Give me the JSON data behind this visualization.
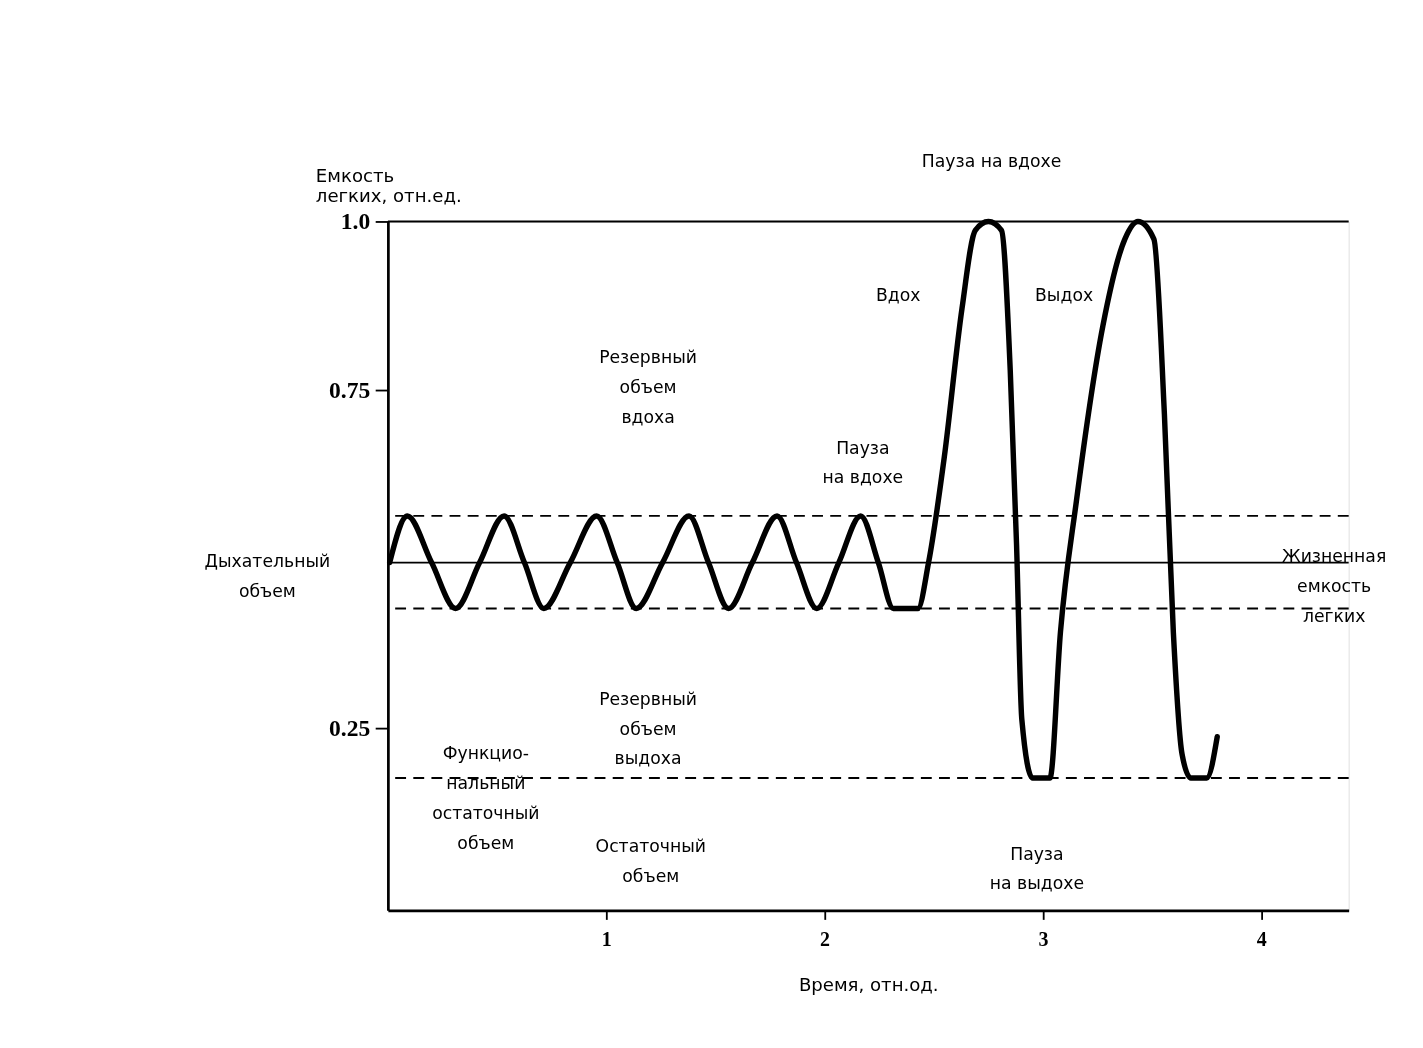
{
  "chart_data": {
    "type": "line",
    "xlabel": "Время, отн.од.",
    "ylabel": "Емкость\nлегких, отн.ед.",
    "xlim": [
      0,
      4.4
    ],
    "ylim": [
      -0.02,
      1.0
    ],
    "xticks": [
      1,
      2,
      3,
      4
    ],
    "yticks": [
      0.25,
      0.75,
      {
        "value": 1,
        "label": "1.0"
      }
    ],
    "grid": false,
    "marker": "none",
    "line_style": "solid",
    "series": [
      {
        "color": "#000000",
        "x": [
          0.008,
          0.089,
          0.2,
          0.31,
          0.42,
          0.532,
          0.625,
          0.714,
          0.835,
          0.956,
          1.05,
          1.137,
          1.258,
          1.379,
          1.468,
          1.56,
          1.669,
          1.782,
          1.871,
          1.964,
          2.065,
          2.165,
          2.246,
          2.315,
          2.427,
          2.476,
          2.548,
          2.629,
          2.69,
          2.75,
          2.81,
          2.85,
          2.879,
          2.903,
          2.952,
          3.032,
          3.08,
          3.153,
          3.274,
          3.375,
          3.435,
          3.508,
          3.556,
          3.597,
          3.637,
          3.677,
          3.75,
          3.798
        ],
        "values": [
          0.495,
          0.564,
          0.495,
          0.427,
          0.495,
          0.564,
          0.495,
          0.427,
          0.495,
          0.564,
          0.495,
          0.427,
          0.495,
          0.564,
          0.495,
          0.427,
          0.495,
          0.564,
          0.495,
          0.427,
          0.495,
          0.564,
          0.495,
          0.427,
          0.427,
          0.495,
          0.651,
          0.871,
          0.987,
          1.0,
          0.987,
          0.78,
          0.521,
          0.263,
          0.176,
          0.176,
          0.392,
          0.586,
          0.845,
          0.974,
          1.0,
          0.974,
          0.715,
          0.392,
          0.211,
          0.176,
          0.176,
          0.237
        ]
      }
    ],
    "ref_lines": [
      {
        "axis": "y",
        "value": 1.0,
        "line_style": "solid",
        "color": "#000000"
      },
      {
        "axis": "y",
        "value": 0.564,
        "line_style": "dashed",
        "color": "#000000"
      },
      {
        "axis": "y",
        "value": 0.495,
        "line_style": "solid",
        "color": "#000000"
      },
      {
        "axis": "y",
        "value": 0.427,
        "line_style": "dashed",
        "color": "#000000"
      },
      {
        "axis": "y",
        "value": 0.176,
        "line_style": "dashed",
        "color": "#000000"
      }
    ],
    "annotations": [
      "Резервный\nобъем\nвдоха",
      "Пауза на вдохе",
      "Вдох",
      "Выдох",
      "Пауза\nна вдохе",
      "Дыхательный\nобъем",
      "Жизненная\nемкость\nлегких",
      "Функцио-\nнальный\nостаточный\nобъем",
      "Резервный\nобъем\nвыдоха",
      "Остаточный\nобъем",
      "Пауза\nна выдохе"
    ]
  }
}
